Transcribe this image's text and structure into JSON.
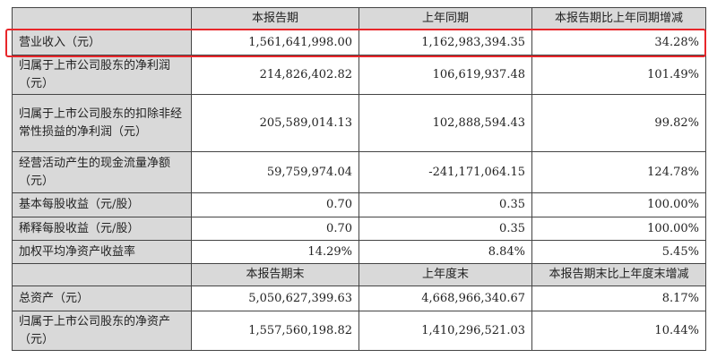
{
  "header1": [
    "",
    "本报告期",
    "上年同期",
    "本报告期比上年同期增减"
  ],
  "rows1": [
    {
      "label": "营业收入（元）",
      "values": [
        "1,561,641,998.00",
        "1,162,983,394.35",
        "34.28%"
      ]
    },
    {
      "label": "归属于上市公司股东的净利润（元）",
      "values": [
        "214,826,402.82",
        "106,619,937.48",
        "101.49%"
      ]
    },
    {
      "label": "归属于上市公司股东的扣除非经常性损益的净利润（元）",
      "values": [
        "205,589,014.13",
        "102,888,594.43",
        "99.82%"
      ]
    },
    {
      "label": "经营活动产生的现金流量净额（元）",
      "values": [
        "59,759,974.04",
        "-241,171,064.15",
        "124.78%"
      ]
    },
    {
      "label": "基本每股收益（元/股）",
      "values": [
        "0.70",
        "0.35",
        "100.00%"
      ]
    },
    {
      "label": "稀释每股收益（元/股）",
      "values": [
        "0.70",
        "0.35",
        "100.00%"
      ]
    },
    {
      "label": "加权平均净资产收益率",
      "values": [
        "14.29%",
        "8.84%",
        "5.45%"
      ]
    }
  ],
  "header2": [
    "",
    "本报告期末",
    "上年度末",
    "本报告期末比上年度末增减"
  ],
  "rows2": [
    {
      "label": "总资产（元）",
      "values": [
        "5,050,627,399.63",
        "4,668,966,340.67",
        "8.17%"
      ]
    },
    {
      "label": "归属于上市公司股东的净资产（元）",
      "values": [
        "1,557,560,198.82",
        "1,410,296,521.03",
        "10.44%"
      ]
    }
  ],
  "highlight_color": "#e8262a"
}
